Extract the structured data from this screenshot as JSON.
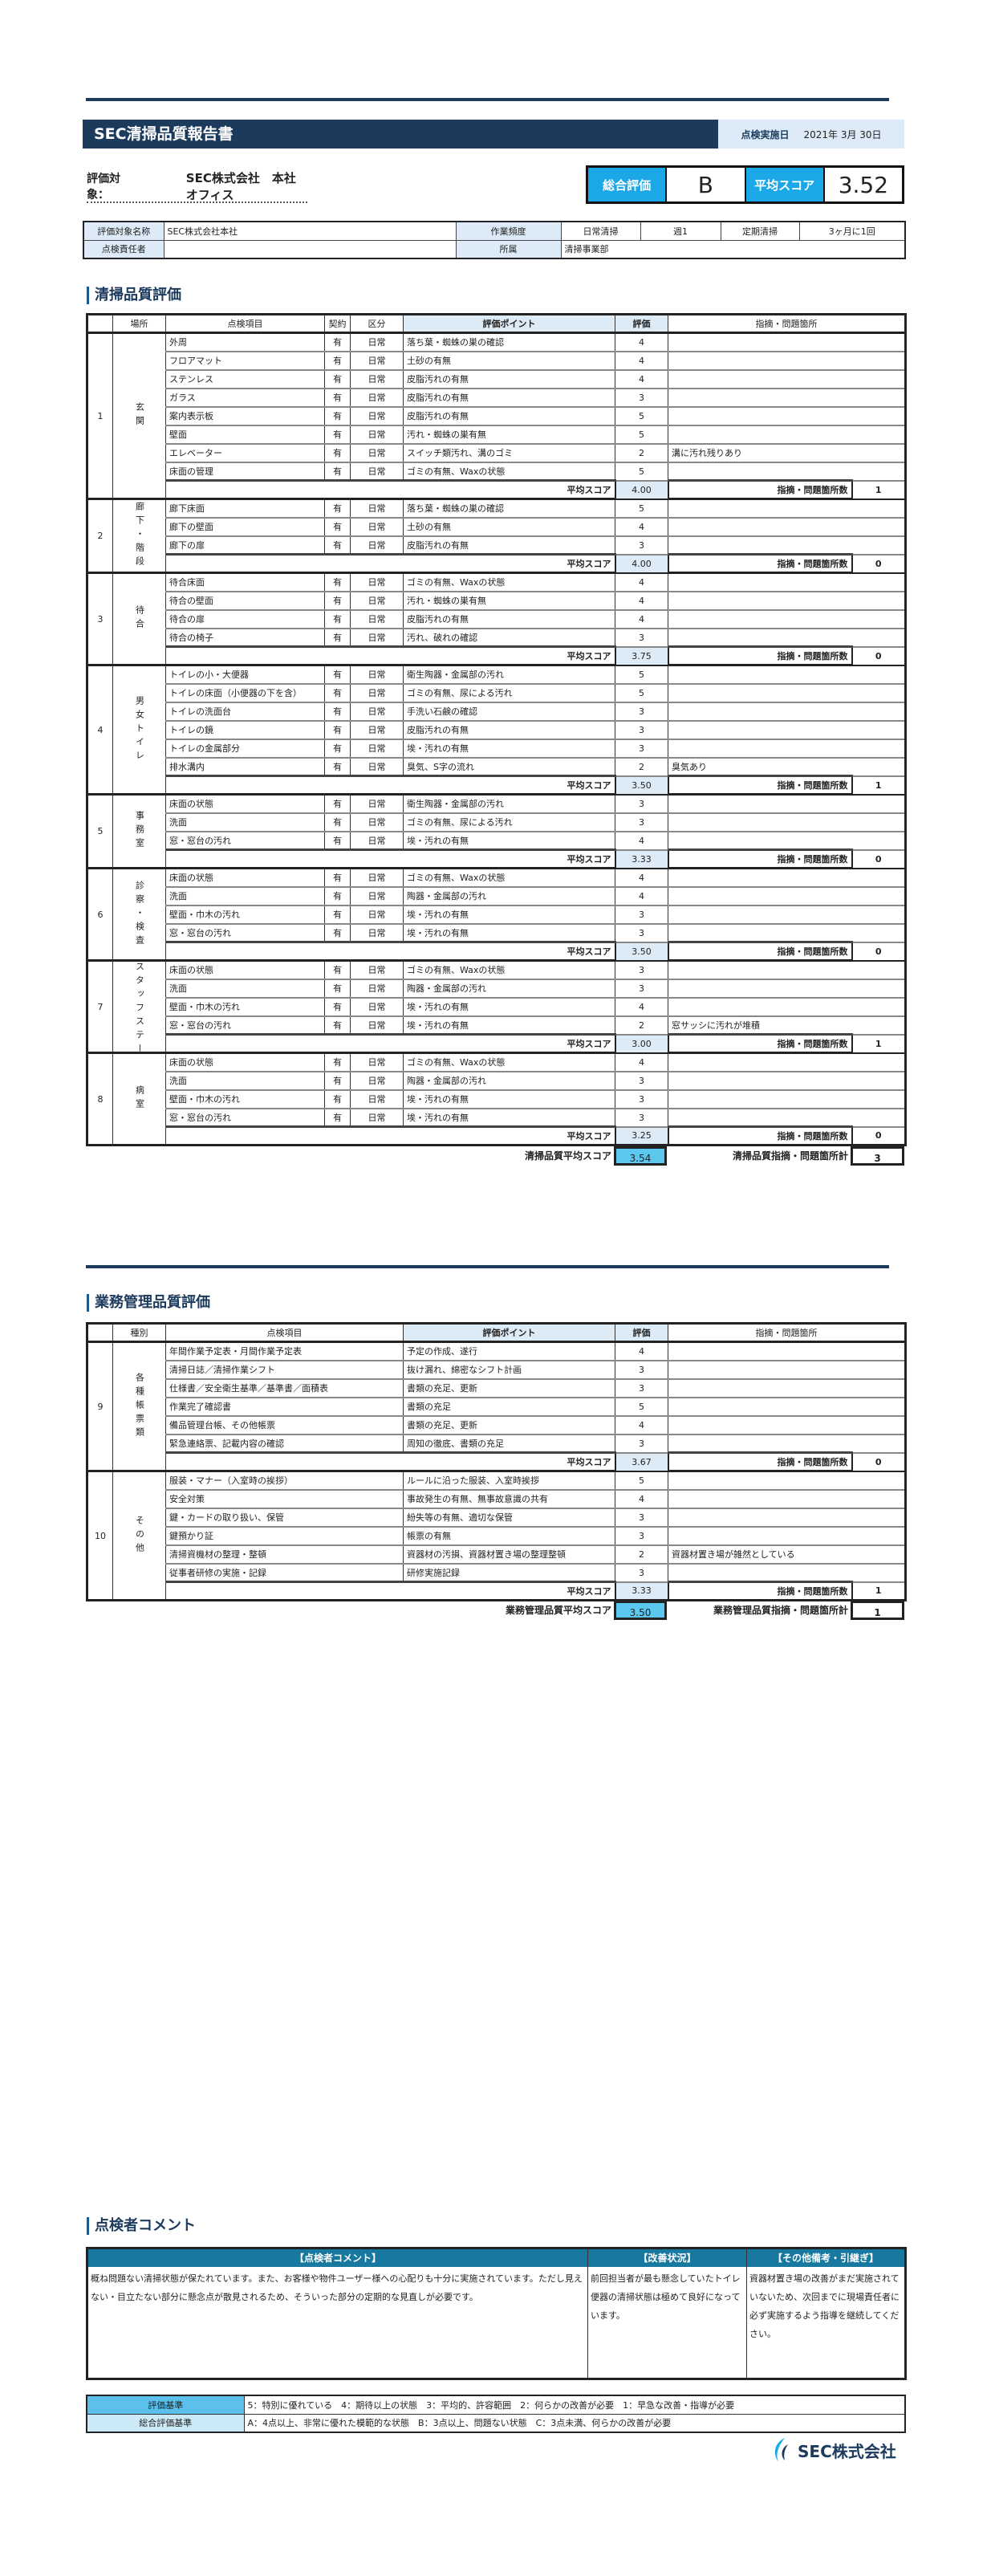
{
  "header": {
    "title": "SEC清掃品質報告書",
    "date_label": "点検実施日",
    "date_value": "2021年 3月 30日"
  },
  "target": {
    "label": "評価対象：",
    "value": "SEC株式会社　本社オフィス"
  },
  "score": {
    "overall_label": "総合評価",
    "overall_value": "B",
    "avg_label": "平均スコア",
    "avg_value": "3.52"
  },
  "info": {
    "name_label": "評価対象名称",
    "name_value": "SEC株式会社本社",
    "freq_label": "作業頻度",
    "daily_label": "日常清掃",
    "daily_value": "週1",
    "periodic_label": "定期清掃",
    "periodic_value": "3ヶ月に1回",
    "manager_label": "点検責任者",
    "manager_value": "",
    "dept_label": "所属",
    "dept_value": "清掃事業部"
  },
  "cleaning": {
    "heading": "清掃品質評価",
    "columns": [
      "場所",
      "点検項目",
      "契約",
      "区分",
      "評価ポイント",
      "評価",
      "指摘・問題箇所"
    ],
    "avg_label": "平均スコア",
    "count_label": "指摘・問題箇所数",
    "sections": [
      {
        "no": "1",
        "place": "玄関",
        "items": [
          [
            "外周",
            "有",
            "日常",
            "落ち葉・蜘蛛の巣の確認",
            "4",
            ""
          ],
          [
            "フロアマット",
            "有",
            "日常",
            "土砂の有無",
            "4",
            ""
          ],
          [
            "ステンレス",
            "有",
            "日常",
            "皮脂汚れの有無",
            "4",
            ""
          ],
          [
            "ガラス",
            "有",
            "日常",
            "皮脂汚れの有無",
            "3",
            ""
          ],
          [
            "案内表示板",
            "有",
            "日常",
            "皮脂汚れの有無",
            "5",
            ""
          ],
          [
            "壁面",
            "有",
            "日常",
            "汚れ・蜘蛛の巣有無",
            "5",
            ""
          ],
          [
            "エレベーター",
            "有",
            "日常",
            "スイッチ類汚れ、溝のゴミ",
            "2",
            "溝に汚れ残りあり"
          ],
          [
            "床面の管理",
            "有",
            "日常",
            "ゴミの有無、Waxの状態",
            "5",
            ""
          ]
        ],
        "avg": "4.00",
        "count": "1"
      },
      {
        "no": "2",
        "place": "廊下・階段",
        "items": [
          [
            "廊下床面",
            "有",
            "日常",
            "落ち葉・蜘蛛の巣の確認",
            "5",
            ""
          ],
          [
            "廊下の壁面",
            "有",
            "日常",
            "土砂の有無",
            "4",
            ""
          ],
          [
            "廊下の扉",
            "有",
            "日常",
            "皮脂汚れの有無",
            "3",
            ""
          ]
        ],
        "avg": "4.00",
        "count": "0"
      },
      {
        "no": "3",
        "place": "待合",
        "items": [
          [
            "待合床面",
            "有",
            "日常",
            "ゴミの有無、Waxの状態",
            "4",
            ""
          ],
          [
            "待合の壁面",
            "有",
            "日常",
            "汚れ・蜘蛛の巣有無",
            "4",
            ""
          ],
          [
            "待合の扉",
            "有",
            "日常",
            "皮脂汚れの有無",
            "4",
            ""
          ],
          [
            "待合の椅子",
            "有",
            "日常",
            "汚れ、破れの確認",
            "3",
            ""
          ]
        ],
        "avg": "3.75",
        "count": "0"
      },
      {
        "no": "4",
        "place": "男女トイレ",
        "items": [
          [
            "トイレの小・大便器",
            "有",
            "日常",
            "衛生陶器・金属部の汚れ",
            "5",
            ""
          ],
          [
            "トイレの床面（小便器の下を含）",
            "有",
            "日常",
            "ゴミの有無、尿による汚れ",
            "5",
            ""
          ],
          [
            "トイレの洗面台",
            "有",
            "日常",
            "手洗い石鹸の確認",
            "3",
            ""
          ],
          [
            "トイレの鏡",
            "有",
            "日常",
            "皮脂汚れの有無",
            "3",
            ""
          ],
          [
            "トイレの金属部分",
            "有",
            "日常",
            "埃・汚れの有無",
            "3",
            ""
          ],
          [
            "排水溝内",
            "有",
            "日常",
            "臭気、S字の流れ",
            "2",
            "臭気あり"
          ]
        ],
        "avg": "3.50",
        "count": "1"
      },
      {
        "no": "5",
        "place": "事務室",
        "items": [
          [
            "床面の状態",
            "有",
            "日常",
            "衛生陶器・金属部の汚れ",
            "3",
            ""
          ],
          [
            "洗面",
            "有",
            "日常",
            "ゴミの有無、尿による汚れ",
            "3",
            ""
          ],
          [
            "窓・窓台の汚れ",
            "有",
            "日常",
            "埃・汚れの有無",
            "4",
            ""
          ]
        ],
        "avg": "3.33",
        "count": "0"
      },
      {
        "no": "6",
        "place": "診察・検査",
        "items": [
          [
            "床面の状態",
            "有",
            "日常",
            "ゴミの有無、Waxの状態",
            "4",
            ""
          ],
          [
            "洗面",
            "有",
            "日常",
            "陶器・金属部の汚れ",
            "4",
            ""
          ],
          [
            "壁面・巾木の汚れ",
            "有",
            "日常",
            "埃・汚れの有無",
            "3",
            ""
          ],
          [
            "窓・窓台の汚れ",
            "有",
            "日常",
            "埃・汚れの有無",
            "3",
            ""
          ]
        ],
        "avg": "3.50",
        "count": "0"
      },
      {
        "no": "7",
        "place": "スタッフステーション",
        "items": [
          [
            "床面の状態",
            "有",
            "日常",
            "ゴミの有無、Waxの状態",
            "3",
            ""
          ],
          [
            "洗面",
            "有",
            "日常",
            "陶器・金属部の汚れ",
            "3",
            ""
          ],
          [
            "壁面・巾木の汚れ",
            "有",
            "日常",
            "埃・汚れの有無",
            "4",
            ""
          ],
          [
            "窓・窓台の汚れ",
            "有",
            "日常",
            "埃・汚れの有無",
            "2",
            "窓サッシに汚れが堆積"
          ]
        ],
        "avg": "3.00",
        "count": "1"
      },
      {
        "no": "8",
        "place": "病室",
        "items": [
          [
            "床面の状態",
            "有",
            "日常",
            "ゴミの有無、Waxの状態",
            "4",
            ""
          ],
          [
            "洗面",
            "有",
            "日常",
            "陶器・金属部の汚れ",
            "3",
            ""
          ],
          [
            "壁面・巾木の汚れ",
            "有",
            "日常",
            "埃・汚れの有無",
            "3",
            ""
          ],
          [
            "窓・窓台の汚れ",
            "有",
            "日常",
            "埃・汚れの有無",
            "3",
            ""
          ]
        ],
        "avg": "3.25",
        "count": "0"
      }
    ],
    "total_avg_label": "清掃品質平均スコア",
    "total_avg": "3.54",
    "total_count_label": "清掃品質指摘・問題箇所計",
    "total_count": "3"
  },
  "management": {
    "heading": "業務管理品質評価",
    "columns": [
      "種別",
      "点検項目",
      "評価ポイント",
      "評価",
      "指摘・問題箇所"
    ],
    "avg_label": "平均スコア",
    "count_label": "指摘・問題箇所数",
    "sections": [
      {
        "no": "9",
        "place": "各種帳票類",
        "items": [
          [
            "年間作業予定表・月間作業予定表",
            "予定の作成、遂行",
            "4",
            ""
          ],
          [
            "清掃日誌／清掃作業シフト",
            "抜け漏れ、綿密なシフト計画",
            "3",
            ""
          ],
          [
            "仕様書／安全衛生基準／基準書／面積表",
            "書類の充足、更新",
            "3",
            ""
          ],
          [
            "作業完了確認書",
            "書類の充足",
            "5",
            ""
          ],
          [
            "備品管理台帳、その他帳票",
            "書類の充足、更新",
            "4",
            ""
          ],
          [
            "緊急連絡票、記載内容の確認",
            "周知の徹底、書類の充足",
            "3",
            ""
          ]
        ],
        "avg": "3.67",
        "count": "0"
      },
      {
        "no": "10",
        "place": "その他",
        "items": [
          [
            "服装・マナー（入室時の挨拶）",
            "ルールに沿った服装、入室時挨拶",
            "5",
            ""
          ],
          [
            "安全対策",
            "事故発生の有無、無事故意識の共有",
            "4",
            ""
          ],
          [
            "鍵・カードの取り扱い、保管",
            "紛失等の有無、適切な保管",
            "3",
            ""
          ],
          [
            "鍵預かり証",
            "帳票の有無",
            "3",
            ""
          ],
          [
            "清掃資機材の整理・整頓",
            "資器材の汚損、資器材置き場の整理整頓",
            "2",
            "資器材置き場が雑然としている"
          ],
          [
            "従事者研修の実施・記録",
            "研修実施記録",
            "3",
            ""
          ]
        ],
        "avg": "3.33",
        "count": "1"
      }
    ],
    "total_avg_label": "業務管理品質平均スコア",
    "total_avg": "3.50",
    "total_count_label": "業務管理品質指摘・問題箇所計",
    "total_count": "1"
  },
  "comments": {
    "heading": "点検者コメント",
    "columns": [
      "【点検者コメント】",
      "【改善状況】",
      "【その他備考・引継ぎ】"
    ],
    "inspector": "概ね問題ない清掃状態が保たれています。また、お客様や物件ユーザー様への心配りも十分に実施されています。ただし見えない・目立たない部分に懸念点が散見されるため、そういった部分の定期的な見直しが必要です。",
    "improvement": "前回担当者が最も懸念していたトイレ便器の清掃状態は極めて良好になっています。",
    "notes": "資器材置き場の改善がまだ実施されていないため、次回までに現場責任者に必ず実施するよう指導を継続してください。"
  },
  "criteria": {
    "eval_label": "評価基準",
    "eval_value": "5：特別に優れている　4：期待以上の状態　3：平均的、許容範囲　2：何らかの改善が必要　1：早急な改善・指導が必要",
    "overall_label": "総合評価基準",
    "overall_value": "A：4点以上、非常に優れた模範的な状態　B：3点以上、問題ない状態　C：3点未満、何らかの改善が必要"
  },
  "logo": {
    "text": "SEC株式会社"
  },
  "colors": {
    "navy": "#1b3a5c",
    "accent": "#1aa8e8",
    "header_light": "#ddebf7",
    "comment_header": "#17799f"
  }
}
